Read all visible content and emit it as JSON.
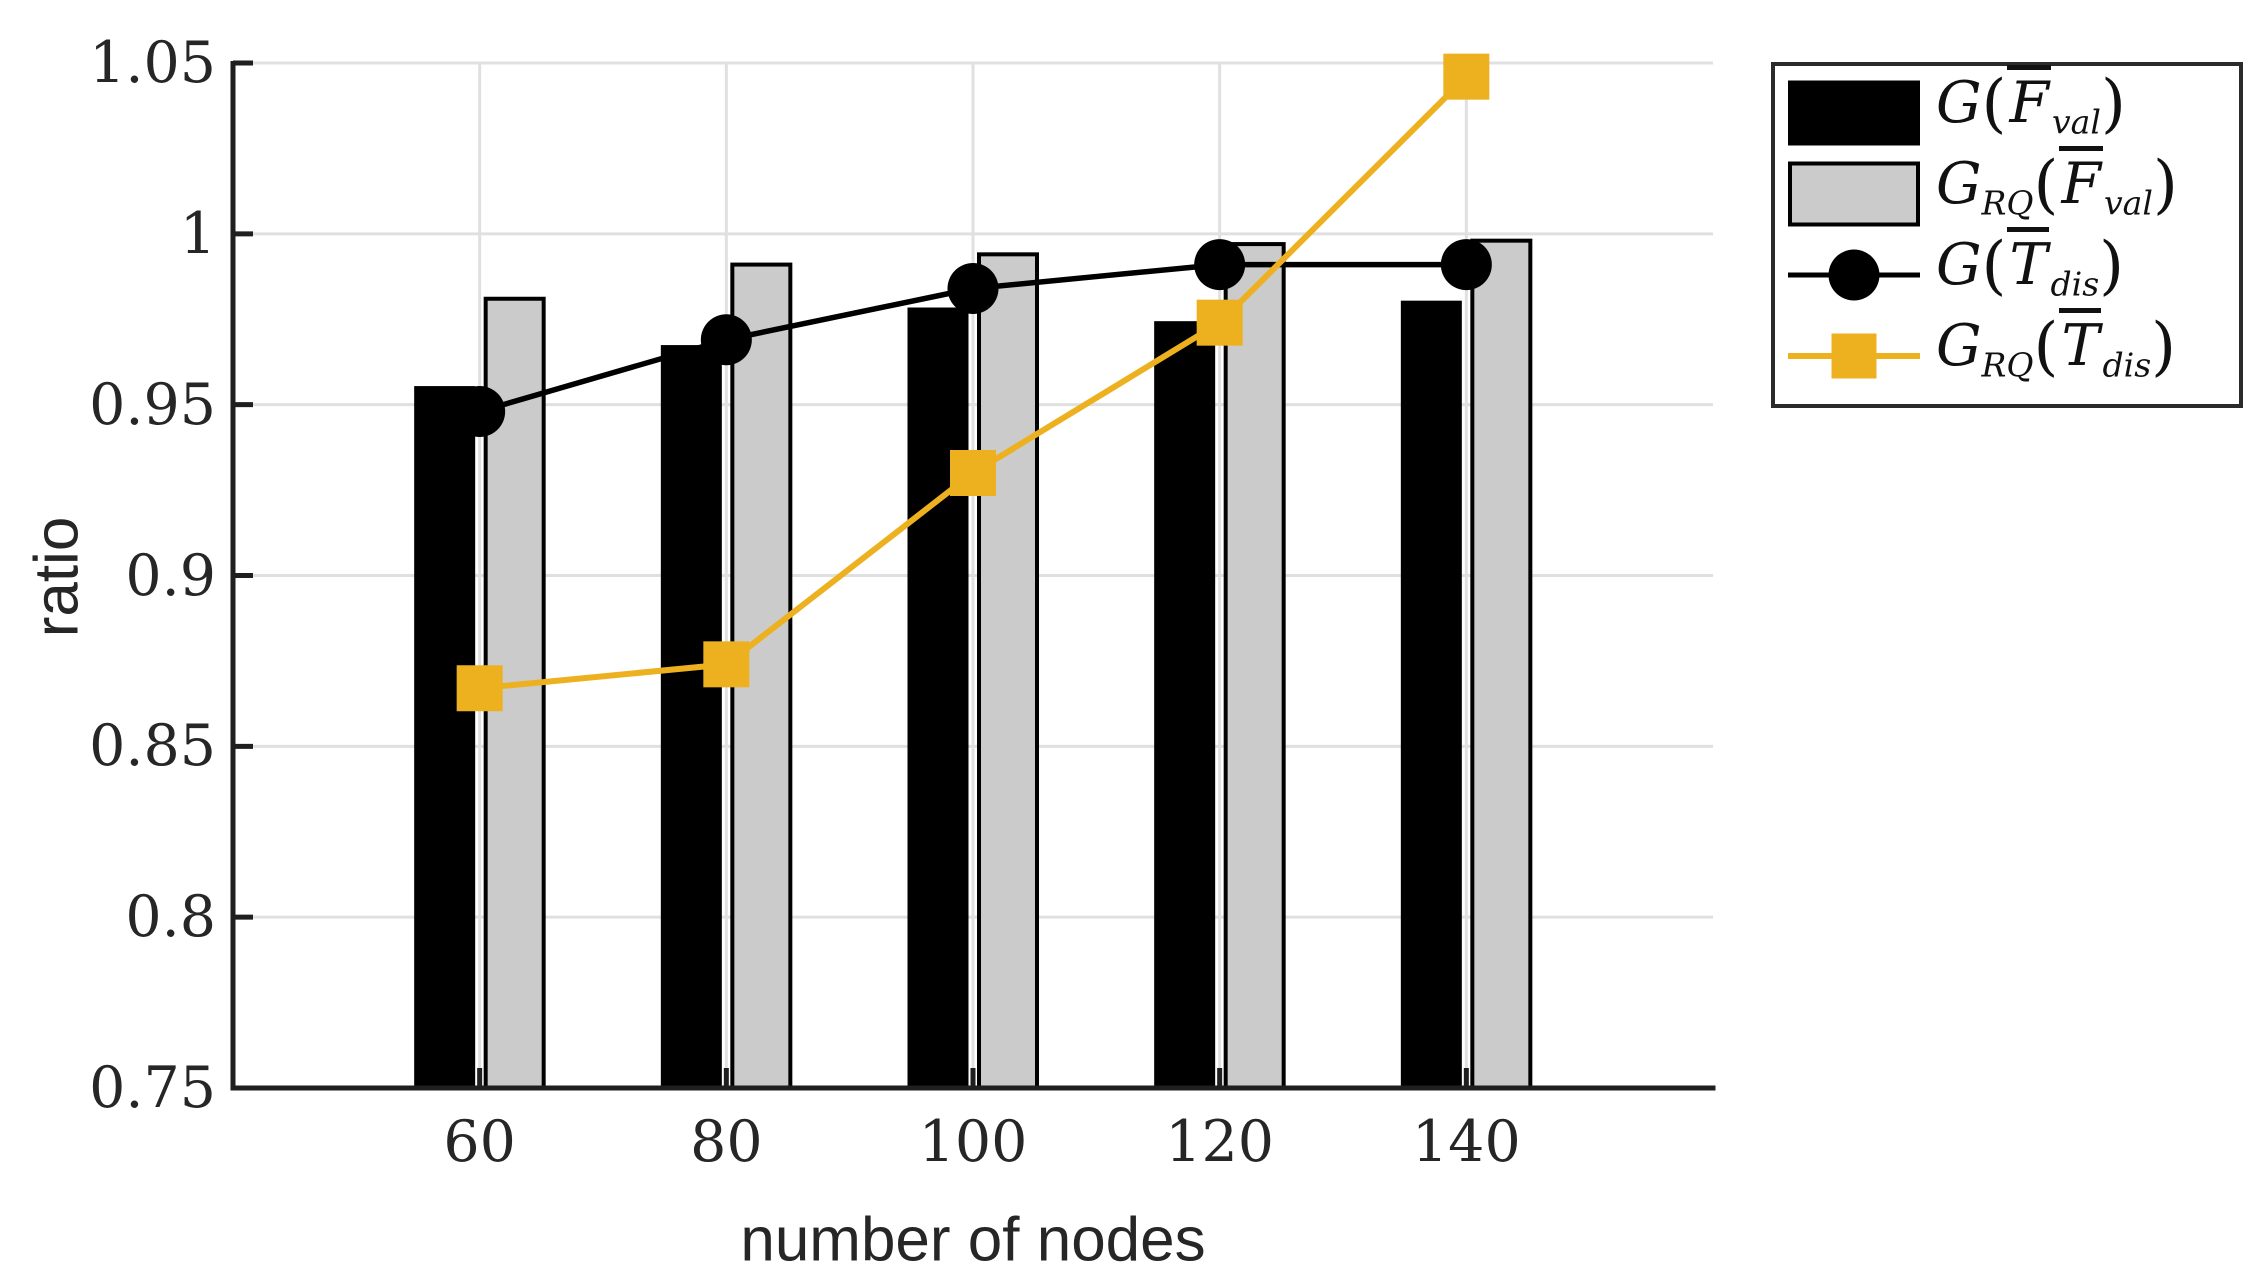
{
  "colors": {
    "black": "#000000",
    "gray_bar_fill": "#cbcbcb",
    "bar_edge": "#000000",
    "orange": "#edb120",
    "grid": "#e0e0e0",
    "axis": "#1f1f1f",
    "text": "#262626",
    "legend_border": "#2b2b2b",
    "background": "#ffffff"
  },
  "chart_data": {
    "type": "bar",
    "subtype": "grouped-bars-with-line-overlays",
    "title": "",
    "xlabel": "number of nodes",
    "ylabel": "ratio",
    "categories": [
      60,
      80,
      100,
      120,
      140
    ],
    "xticks": [
      "60",
      "80",
      "100",
      "120",
      "140"
    ],
    "yticks": [
      "0.75",
      "0.8",
      "0.85",
      "0.9",
      "0.95",
      "1",
      "1.05"
    ],
    "ytick_values": [
      0.75,
      0.8,
      0.85,
      0.9,
      0.95,
      1.0,
      1.05
    ],
    "xlim": [
      40,
      160
    ],
    "ylim": [
      0.75,
      1.05
    ],
    "grid": "on",
    "legend_position": "outside-top-right",
    "series": [
      {
        "name": "G(F̄_val)",
        "kind": "bar",
        "color": "#000000",
        "values": [
          0.955,
          0.967,
          0.978,
          0.974,
          0.98
        ]
      },
      {
        "name": "G_RQ(F̄_val)",
        "kind": "bar",
        "color": "#cbcbcb",
        "values": [
          0.981,
          0.991,
          0.994,
          0.997,
          0.998
        ]
      },
      {
        "name": "G(T̄_dis)",
        "kind": "line",
        "marker": "circle",
        "color": "#000000",
        "values": [
          0.948,
          0.969,
          0.984,
          0.991,
          0.991
        ]
      },
      {
        "name": "G_RQ(T̄_dis)",
        "kind": "line",
        "marker": "square",
        "color": "#edb120",
        "values": [
          0.867,
          0.874,
          0.93,
          0.974,
          1.046
        ]
      }
    ]
  },
  "legend": {
    "items": [
      {
        "text": "G(F̄_val)",
        "g": "G",
        "g_sub": "",
        "open": "(",
        "arg": "F",
        "arg_sub": "val",
        "close": ")",
        "swatch": "black-bar"
      },
      {
        "text": "G_RQ(F̄_val)",
        "g": "G",
        "g_sub": "RQ",
        "open": "(",
        "arg": "F",
        "arg_sub": "val",
        "close": ")",
        "swatch": "gray-bar"
      },
      {
        "text": "G(T̄_dis)",
        "g": "G",
        "g_sub": "",
        "open": "(",
        "arg": "T",
        "arg_sub": "dis",
        "close": ")",
        "swatch": "black-line-circle"
      },
      {
        "text": "G_RQ(T̄_dis)",
        "g": "G",
        "g_sub": "RQ",
        "open": "(",
        "arg": "T",
        "arg_sub": "dis",
        "close": ")",
        "swatch": "orange-line-square"
      }
    ]
  }
}
